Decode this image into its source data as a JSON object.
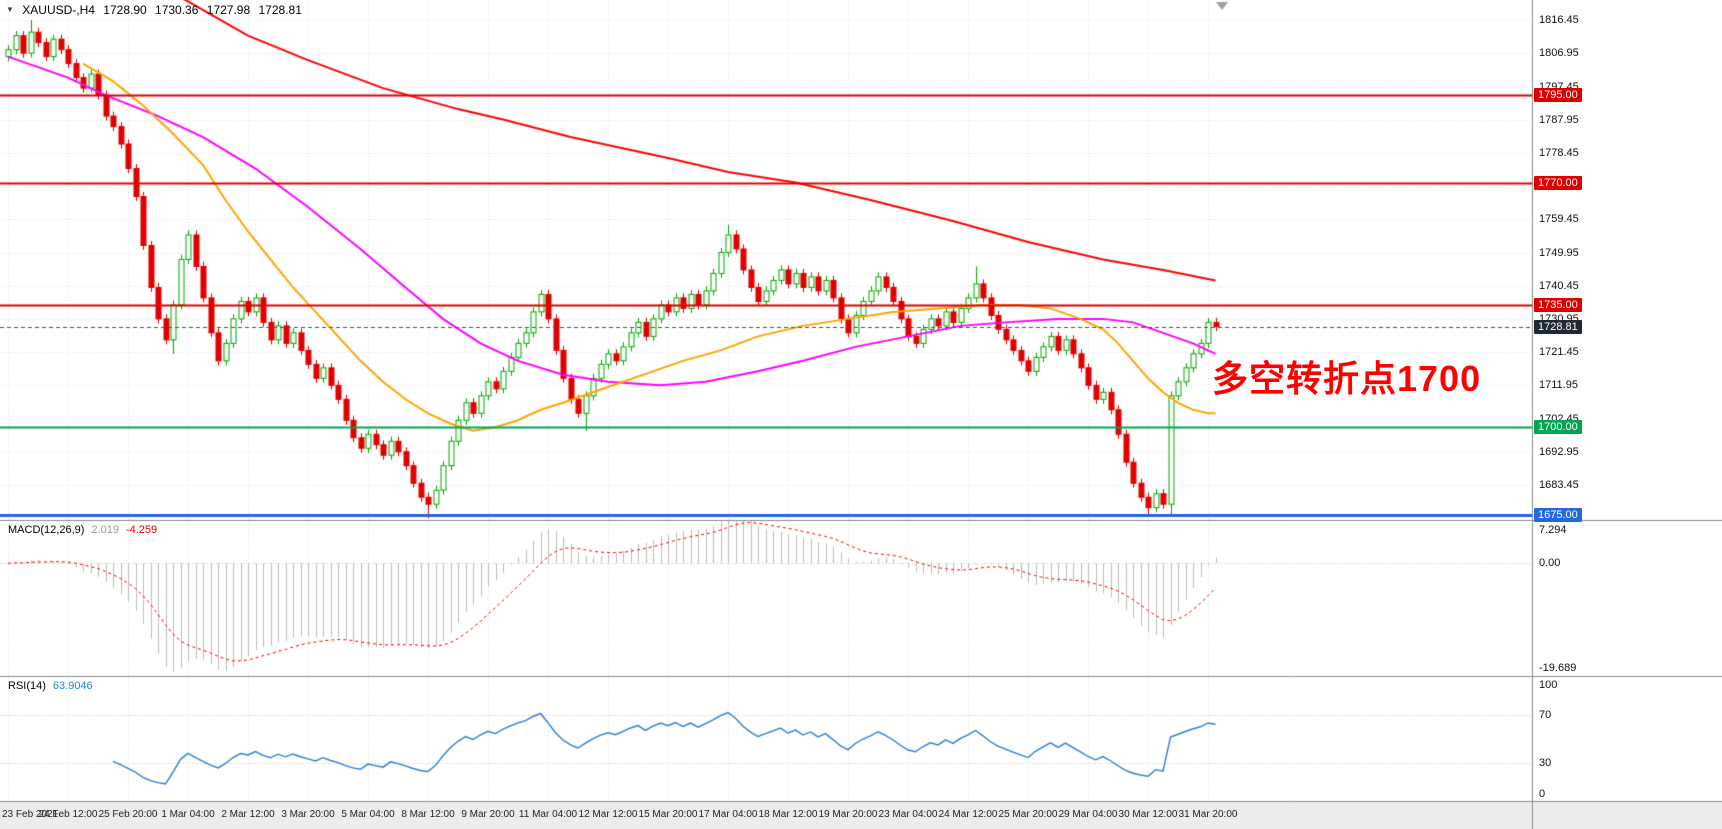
{
  "header": {
    "symbol_period": "XAUUSD-,H4",
    "open": "1728.90",
    "high": "1730.36",
    "low": "1727.98",
    "close": "1728.81"
  },
  "annotation": {
    "text": "多空转折点1700",
    "color": "#ff0000"
  },
  "current_price": {
    "label": "1728.81",
    "value": 1728.81,
    "line_color": "#44505c",
    "badge_color": "#1d2935"
  },
  "hlines": [
    {
      "label": "1795.00",
      "price": 1795,
      "color": "#dd0000",
      "width": 2
    },
    {
      "label": "1770.00",
      "price": 1770,
      "color": "#dd0000",
      "width": 2
    },
    {
      "label": "1735.00",
      "price": 1735,
      "color": "#dd0000",
      "width": 2
    },
    {
      "label": "1700.00",
      "price": 1700,
      "color": "#00a651",
      "width": 2
    },
    {
      "label": "1675.00",
      "price": 1675,
      "color": "#2468e0",
      "width": 3
    }
  ],
  "price_axis": {
    "labels": [
      "1816.45",
      "1806.95",
      "1797.45",
      "1787.95",
      "1778.45",
      "1768.95",
      "1759.45",
      "1749.95",
      "1740.45",
      "1730.95",
      "1721.45",
      "1711.95",
      "1702.45",
      "1692.95",
      "1683.45"
    ]
  },
  "time_axis": {
    "label_every": 8,
    "labels": [
      "23 Feb 2021",
      "24 Feb 12:00",
      "25 Feb 20:00",
      "1 Mar 04:00",
      "2 Mar 12:00",
      "3 Mar 20:00",
      "5 Mar 04:00",
      "8 Mar 12:00",
      "9 Mar 20:00",
      "11 Mar 04:00",
      "12 Mar 12:00",
      "15 Mar 20:00",
      "17 Mar 04:00",
      "18 Mar 12:00",
      "19 Mar 20:00",
      "23 Mar 04:00",
      "24 Mar 12:00",
      "25 Mar 20:00",
      "29 Mar 04:00",
      "30 Mar 12:00",
      "31 Mar 20:00"
    ]
  },
  "macd": {
    "title": "MACD(12,26,9)",
    "main_value": "2.019",
    "signal_value": "-4.259",
    "axis_labels": [
      "7.294",
      "0.00",
      "-19.689"
    ],
    "range": [
      -19.689,
      7.294
    ],
    "fast": 12,
    "slow": 26,
    "signal": 9,
    "hist_color": "#bdbdbd",
    "signal_color": "#ff0000"
  },
  "rsi": {
    "title": "RSI(14)",
    "value": "63.9046",
    "period": 14,
    "levels": [
      70,
      30
    ],
    "axis_labels": [
      "100",
      "70",
      "30",
      "0"
    ],
    "range": [
      0,
      100
    ],
    "color": "#2b7fd4"
  },
  "colors": {
    "bull": "#00a800",
    "bear": "#e00000",
    "grid": "#e3e3e3",
    "separator": "#8a8a8a",
    "time_strip_bg": "#ececec",
    "ma_red": "#ff0000",
    "ma_magenta": "#ff00ff",
    "ma_orange": "#ffa500"
  },
  "chart_data": {
    "type": "candlestick",
    "symbol": "XAUUSD",
    "timeframe": "H4",
    "title": "XAUUSD-,H4 1728.90 1730.36 1727.98 1728.81",
    "ylim": [
      1673.9,
      1822.2
    ],
    "price_grid_step": 9.5,
    "first_open": 1806,
    "closes": [
      1808,
      1812,
      1807,
      1813,
      1810,
      1806,
      1811,
      1808,
      1804,
      1800,
      1797,
      1801,
      1795,
      1789,
      1786,
      1781,
      1774,
      1766,
      1752,
      1740,
      1731,
      1725,
      1735,
      1748,
      1755,
      1746,
      1737,
      1727,
      1719,
      1724,
      1731,
      1736,
      1733,
      1737,
      1730,
      1725,
      1729,
      1724,
      1727,
      1722,
      1718,
      1714,
      1717,
      1712,
      1708,
      1702,
      1697,
      1694,
      1698,
      1695,
      1692,
      1696,
      1693,
      1689,
      1684,
      1680,
      1678,
      1682,
      1689,
      1696,
      1702,
      1707,
      1704,
      1709,
      1713,
      1711,
      1716,
      1720,
      1724,
      1727,
      1733,
      1738,
      1731,
      1722,
      1714,
      1708,
      1704,
      1709,
      1714,
      1718,
      1721,
      1719,
      1723,
      1727,
      1730,
      1726,
      1731,
      1735,
      1733,
      1737,
      1734,
      1738,
      1735,
      1739,
      1744,
      1750,
      1755,
      1751,
      1745,
      1740,
      1736,
      1739,
      1742,
      1745,
      1741,
      1744,
      1740,
      1743,
      1739,
      1742,
      1737,
      1731,
      1727,
      1732,
      1736,
      1739,
      1743,
      1740,
      1736,
      1731,
      1726,
      1724,
      1728,
      1731,
      1729,
      1733,
      1730,
      1734,
      1737,
      1741,
      1737,
      1732,
      1728,
      1725,
      1722,
      1719,
      1716,
      1720,
      1723,
      1726,
      1722,
      1725,
      1721,
      1717,
      1712,
      1708,
      1710,
      1705,
      1698,
      1690,
      1684,
      1680,
      1677,
      1681,
      1678,
      1709,
      1713,
      1717,
      1721,
      1724,
      1730,
      1728.8
    ],
    "wick_overrides": {
      "3": [
        3.5,
        1.3
      ],
      "22": [
        1.3,
        4
      ],
      "56": [
        1.3,
        4
      ],
      "77": [
        1.3,
        5
      ],
      "96": [
        3,
        1.3
      ],
      "129": [
        5,
        1.3
      ],
      "152": [
        1.3,
        2.5
      ],
      "155": [
        1.3,
        3
      ]
    },
    "ma_lines": [
      {
        "name": "ma-red-slow",
        "color": "#ff0000",
        "width": 2,
        "points": [
          [
            23,
            1823
          ],
          [
            32,
            1812
          ],
          [
            40,
            1805
          ],
          [
            50,
            1797
          ],
          [
            60,
            1791
          ],
          [
            66,
            1788
          ],
          [
            75,
            1783
          ],
          [
            88,
            1777
          ],
          [
            96,
            1773
          ],
          [
            105,
            1770
          ],
          [
            115,
            1765
          ],
          [
            126,
            1759
          ],
          [
            136,
            1753
          ],
          [
            146,
            1748
          ],
          [
            154,
            1745
          ],
          [
            161,
            1742
          ]
        ]
      },
      {
        "name": "ma-magenta-medium",
        "color": "#ff00ff",
        "width": 2,
        "points": [
          [
            0,
            1806
          ],
          [
            8,
            1800
          ],
          [
            13,
            1795
          ],
          [
            20,
            1789
          ],
          [
            26,
            1783
          ],
          [
            33,
            1774
          ],
          [
            40,
            1763
          ],
          [
            47,
            1751
          ],
          [
            53,
            1740
          ],
          [
            58,
            1731
          ],
          [
            63,
            1724
          ],
          [
            68,
            1719
          ],
          [
            74,
            1715
          ],
          [
            80,
            1713
          ],
          [
            87,
            1712
          ],
          [
            93,
            1713
          ],
          [
            100,
            1716
          ],
          [
            106,
            1719
          ],
          [
            113,
            1723
          ],
          [
            120,
            1726
          ],
          [
            127,
            1729
          ],
          [
            133,
            1730
          ],
          [
            140,
            1731
          ],
          [
            146,
            1731
          ],
          [
            150,
            1730
          ],
          [
            154,
            1727
          ],
          [
            158,
            1724
          ],
          [
            161,
            1721
          ]
        ]
      },
      {
        "name": "ma-orange-fast",
        "color": "#ffa500",
        "width": 2,
        "points": [
          [
            10,
            1804
          ],
          [
            14,
            1799
          ],
          [
            18,
            1792
          ],
          [
            22,
            1784
          ],
          [
            26,
            1775
          ],
          [
            29,
            1765
          ],
          [
            32,
            1756
          ],
          [
            35,
            1748
          ],
          [
            38,
            1740
          ],
          [
            41,
            1733
          ],
          [
            44,
            1726
          ],
          [
            47,
            1719
          ],
          [
            50,
            1713
          ],
          [
            53,
            1708
          ],
          [
            56,
            1704
          ],
          [
            59,
            1701
          ],
          [
            62,
            1699
          ],
          [
            65,
            1700
          ],
          [
            68,
            1702
          ],
          [
            71,
            1705
          ],
          [
            74,
            1707
          ],
          [
            78,
            1710
          ],
          [
            82,
            1713
          ],
          [
            86,
            1716
          ],
          [
            90,
            1719
          ],
          [
            95,
            1722
          ],
          [
            100,
            1726
          ],
          [
            106,
            1729
          ],
          [
            112,
            1731
          ],
          [
            118,
            1733
          ],
          [
            124,
            1734
          ],
          [
            130,
            1735
          ],
          [
            135,
            1735
          ],
          [
            139,
            1734
          ],
          [
            143,
            1731
          ],
          [
            146,
            1728
          ],
          [
            148,
            1724
          ],
          [
            150,
            1719
          ],
          [
            152,
            1714
          ],
          [
            154,
            1710
          ],
          [
            156,
            1707
          ],
          [
            158,
            1705
          ],
          [
            160,
            1704
          ],
          [
            161,
            1704
          ]
        ]
      }
    ]
  }
}
